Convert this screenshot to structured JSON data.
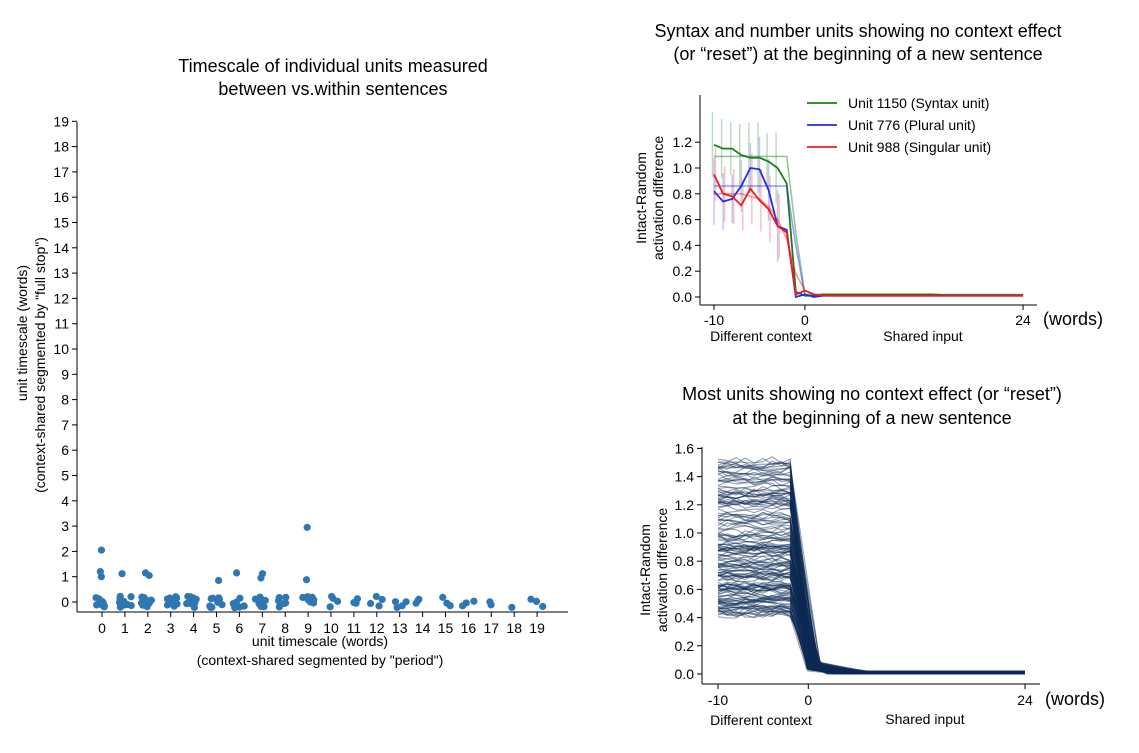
{
  "chart_data": [
    {
      "type": "scatter",
      "title": "Timescale of individual units measured between vs.within sentences",
      "title_lines": [
        "Timescale of individual units measured",
        "between vs.within sentences"
      ],
      "xlabel": "unit timescale (words)",
      "xlabel2": "(context-shared segmented by \"period\")",
      "ylabel": "unit timescale (words)",
      "ylabel2": "(context-shared segmented by \"full stop\")",
      "x_ticks": [
        "0",
        "1",
        "2",
        "3",
        "4",
        "5",
        "6",
        "7",
        "8",
        "9",
        "10",
        "11",
        "12",
        "13",
        "14",
        "15",
        "16",
        "17",
        "18",
        "19"
      ],
      "y_ticks": [
        "0",
        "1",
        "2",
        "3",
        "4",
        "5",
        "6",
        "7",
        "8",
        "9",
        "10",
        "11",
        "12",
        "13",
        "14",
        "15",
        "16",
        "17",
        "18",
        "19"
      ],
      "ylim": [
        -0.4,
        19
      ],
      "points_color": "#2e77b3",
      "notable_points": [
        {
          "x": 0,
          "y": 2.05
        },
        {
          "x": 0,
          "y": 1.2
        },
        {
          "x": 0,
          "y": 1.0
        },
        {
          "x": 1,
          "y": 1.12
        },
        {
          "x": 2,
          "y": 1.15
        },
        {
          "x": 2,
          "y": 1.05
        },
        {
          "x": 5,
          "y": 0.85
        },
        {
          "x": 6,
          "y": 1.15
        },
        {
          "x": 7,
          "y": 1.12
        },
        {
          "x": 7,
          "y": 0.95
        },
        {
          "x": 9,
          "y": 2.95
        },
        {
          "x": 9,
          "y": 0.88
        }
      ],
      "cluster_density": [
        10,
        10,
        10,
        10,
        9,
        9,
        8,
        8,
        7,
        7,
        4,
        3,
        4,
        4,
        3,
        3,
        3,
        2,
        1,
        3
      ],
      "spines": "left-bottom",
      "grid": false
    },
    {
      "type": "line",
      "title": "Syntax and number units showing no context effect (or “reset”) at the beginning of a new sentence",
      "title_lines": [
        "Syntax and number units showing no context effect",
        "(or “reset”) at the beginning of a new sentence"
      ],
      "ylabel": "Intact-Random",
      "ylabel2": "activation difference",
      "x_ticks": [
        "-10",
        "0",
        "24"
      ],
      "x_unit": "(words)",
      "x_region_labels": [
        "Different context",
        "Shared input"
      ],
      "y_ticks": [
        "0.0",
        "0.2",
        "0.4",
        "0.6",
        "0.8",
        "1.0",
        "1.2"
      ],
      "xlim": [
        -11,
        25
      ],
      "ylim": [
        -0.05,
        1.35
      ],
      "legend_position": "top-right",
      "series": [
        {
          "name": "Unit 1150 (Syntax unit)",
          "color": "#1a7f1a",
          "x": [
            -10,
            -9,
            -8,
            -7,
            -6,
            -5,
            -4,
            -3,
            -2,
            -1,
            0,
            1,
            2,
            3,
            4,
            5,
            6,
            7,
            8,
            9,
            10,
            11,
            12,
            13,
            14,
            15,
            16,
            17,
            18,
            19,
            20,
            21,
            22,
            23,
            24
          ],
          "y": [
            1.18,
            1.15,
            1.15,
            1.1,
            1.08,
            1.08,
            1.05,
            1.0,
            0.88,
            0.04,
            0.01,
            0.01,
            0.02,
            0.02,
            0.02,
            0.02,
            0.02,
            0.02,
            0.02,
            0.02,
            0.02,
            0.02,
            0.02,
            0.02,
            0.02,
            0.015,
            0.015,
            0.015,
            0.015,
            0.015,
            0.015,
            0.015,
            0.015,
            0.015,
            0.015
          ],
          "fit": [
            1.09,
            1.09,
            1.09,
            1.09,
            1.09,
            1.09,
            1.09,
            1.09,
            1.09,
            0.5,
            0.02,
            0.02,
            0.02,
            0.02,
            0.02,
            0.02,
            0.02,
            0.02,
            0.02,
            0.02,
            0.02,
            0.02,
            0.02,
            0.02,
            0.02,
            0.02,
            0.02,
            0.02,
            0.02,
            0.02,
            0.02,
            0.02,
            0.02,
            0.02,
            0.02
          ]
        },
        {
          "name": "Unit 776 (Plural unit)",
          "color": "#1f2ee8",
          "x": [
            -10,
            -9,
            -8,
            -7,
            -6,
            -5,
            -4,
            -3,
            -2,
            -1,
            0,
            1,
            2,
            3,
            4,
            5,
            6,
            7,
            8,
            9,
            10,
            11,
            12,
            13,
            14,
            15,
            16,
            17,
            18,
            19,
            20,
            21,
            22,
            23,
            24
          ],
          "y": [
            0.82,
            0.74,
            0.76,
            0.86,
            1.0,
            0.99,
            0.83,
            0.55,
            0.52,
            0.0,
            0.02,
            0.0,
            0.01,
            0.01,
            0.01,
            0.01,
            0.01,
            0.01,
            0.01,
            0.01,
            0.01,
            0.01,
            0.01,
            0.01,
            0.01,
            0.01,
            0.01,
            0.01,
            0.01,
            0.01,
            0.01,
            0.01,
            0.01,
            0.01,
            0.01
          ],
          "fit": [
            0.86,
            0.86,
            0.86,
            0.86,
            0.86,
            0.86,
            0.86,
            0.86,
            0.86,
            0.4,
            0.01,
            0.01,
            0.01,
            0.01,
            0.01,
            0.01,
            0.01,
            0.01,
            0.01,
            0.01,
            0.01,
            0.01,
            0.01,
            0.01,
            0.01,
            0.01,
            0.01,
            0.01,
            0.01,
            0.01,
            0.01,
            0.01,
            0.01,
            0.01,
            0.01
          ]
        },
        {
          "name": "Unit 988 (Singular unit)",
          "color": "#ee1c1c",
          "x": [
            -10,
            -9,
            -8,
            -7,
            -6,
            -5,
            -4,
            -3,
            -2,
            -1,
            0,
            1,
            2,
            3,
            4,
            5,
            6,
            7,
            8,
            9,
            10,
            11,
            12,
            13,
            14,
            15,
            16,
            17,
            18,
            19,
            20,
            21,
            22,
            23,
            24
          ],
          "y": [
            0.95,
            0.8,
            0.78,
            0.71,
            0.84,
            0.75,
            0.68,
            0.55,
            0.5,
            0.02,
            0.05,
            0.02,
            0.01,
            0.01,
            0.01,
            0.01,
            0.01,
            0.01,
            0.01,
            0.01,
            0.01,
            0.01,
            0.01,
            0.01,
            0.01,
            0.01,
            0.01,
            0.01,
            0.01,
            0.01,
            0.01,
            0.01,
            0.01,
            0.01,
            0.01
          ],
          "fit": [
            0.8,
            0.8,
            0.8,
            0.8,
            0.78,
            0.76,
            0.7,
            0.6,
            0.45,
            0.18,
            0.05,
            0.02,
            0.01,
            0.01,
            0.01,
            0.01,
            0.01,
            0.01,
            0.01,
            0.01,
            0.01,
            0.01,
            0.01,
            0.01,
            0.01,
            0.01,
            0.01,
            0.01,
            0.01,
            0.01,
            0.01,
            0.01,
            0.01,
            0.01,
            0.01
          ]
        }
      ]
    },
    {
      "type": "line",
      "title": "Most units showing no context effect (or “reset”) at the beginning of a new sentence",
      "title_lines": [
        "Most units showing no context effect (or “reset”)",
        "at the beginning of a new sentence"
      ],
      "ylabel": "Intact-Random",
      "ylabel2": "activation difference",
      "x_ticks": [
        "-10",
        "0",
        "24"
      ],
      "x_unit": "(words)",
      "x_region_labels": [
        "Different context",
        "Shared input"
      ],
      "y_ticks": [
        "0.0",
        "0.2",
        "0.4",
        "0.6",
        "0.8",
        "1.0",
        "1.2",
        "1.4",
        "1.6"
      ],
      "xlim": [
        -11,
        25
      ],
      "ylim": [
        -0.05,
        1.6
      ],
      "line_color": "#0d2a55",
      "plateau_range": [
        0.42,
        1.53
      ],
      "drop_x": -1.5,
      "tail_level": 0.01,
      "grid": false
    }
  ]
}
